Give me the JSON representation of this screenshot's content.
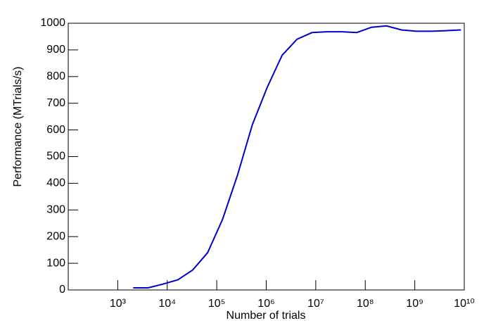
{
  "chart_data": {
    "type": "line",
    "x_label": "Number of trials",
    "y_label": "Performance (MTrials/s)",
    "x_log": true,
    "xlim": [
      100,
      10000000000
    ],
    "xticks": [
      {
        "value": 1000,
        "label": "10³"
      },
      {
        "value": 10000,
        "label": "10⁴"
      },
      {
        "value": 100000,
        "label": "10⁵"
      },
      {
        "value": 1000000,
        "label": "10⁶"
      },
      {
        "value": 10000000,
        "label": "10⁷"
      },
      {
        "value": 100000000,
        "label": "10⁸"
      },
      {
        "value": 1000000000,
        "label": "10⁹"
      },
      {
        "value": 10000000000,
        "label": "10¹⁰"
      }
    ],
    "ylim": [
      0,
      1000
    ],
    "yticks": [
      0,
      100,
      200,
      300,
      400,
      500,
      600,
      700,
      800,
      900,
      1000
    ],
    "series": [
      {
        "color": "#0000cc",
        "x": [
          2048,
          4096,
          8192,
          16384,
          32768,
          65536,
          131072,
          262144,
          524288,
          1048576,
          2097152,
          4194304,
          8388608,
          16777216,
          33554432,
          67108864,
          134217728,
          268435456,
          536870912,
          1073741824,
          2147483648,
          4294967296,
          8589934592
        ],
        "values": [
          8,
          8,
          22,
          38,
          75,
          140,
          265,
          430,
          620,
          760,
          880,
          940,
          965,
          968,
          968,
          965,
          985,
          990,
          975,
          970,
          970,
          972,
          975
        ]
      }
    ]
  }
}
